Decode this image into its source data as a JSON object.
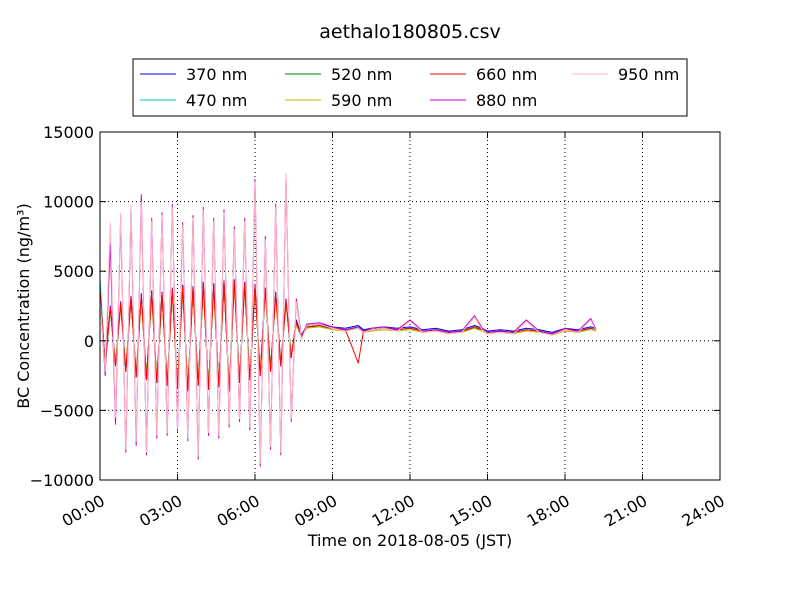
{
  "chart_data": {
    "type": "line",
    "title": "aethalo180805.csv",
    "xlabel": "Time on 2018-08-05 (JST)",
    "ylabel": "BC Concentration (ng/m³)",
    "xlim": [
      "00:00",
      "24:00"
    ],
    "ylim": [
      -10000,
      15000
    ],
    "x_ticks": [
      "00:00",
      "03:00",
      "06:00",
      "09:00",
      "12:00",
      "15:00",
      "18:00",
      "21:00",
      "24:00"
    ],
    "y_ticks": [
      "15000",
      "10000",
      "5000",
      "0",
      "−5000",
      "−10000"
    ],
    "grid": true,
    "legend_placement": "top",
    "x_hours": [
      0.0,
      0.2,
      0.4,
      0.6,
      0.8,
      1.0,
      1.2,
      1.4,
      1.6,
      1.8,
      2.0,
      2.2,
      2.4,
      2.6,
      2.8,
      3.0,
      3.2,
      3.4,
      3.6,
      3.8,
      4.0,
      4.2,
      4.4,
      4.6,
      4.8,
      5.0,
      5.2,
      5.4,
      5.6,
      5.8,
      6.0,
      6.2,
      6.4,
      6.6,
      6.8,
      7.0,
      7.2,
      7.4,
      7.6,
      7.8,
      8.0,
      8.5,
      9.0,
      9.5,
      10.0,
      10.2,
      10.5,
      11.0,
      11.5,
      12.0,
      12.5,
      13.0,
      13.5,
      14.0,
      14.5,
      14.8,
      15.0,
      15.5,
      16.0,
      16.5,
      17.0,
      17.5,
      18.0,
      18.5,
      19.0,
      19.2
    ],
    "series": [
      {
        "name": "370 nm",
        "color": "#0000ff",
        "values": [
          3000,
          -1500,
          2500,
          -1800,
          2800,
          -2200,
          3200,
          -2600,
          3400,
          -2800,
          3600,
          -3000,
          3500,
          -3200,
          3800,
          -3400,
          4000,
          -3600,
          3900,
          -3200,
          4200,
          -3500,
          4100,
          -3300,
          4300,
          -3600,
          4400,
          -3000,
          4200,
          -2800,
          4000,
          -2500,
          3800,
          -2200,
          3500,
          -1800,
          3000,
          -1200,
          1500,
          400,
          1100,
          1200,
          1000,
          900,
          1100,
          800,
          900,
          1000,
          900,
          1000,
          800,
          900,
          700,
          800,
          1100,
          900,
          700,
          800,
          700,
          900,
          800,
          600,
          900,
          800,
          1000,
          900
        ]
      },
      {
        "name": "470 nm",
        "color": "#00bfbf",
        "values": [
          4500,
          -2000,
          2300,
          -1700,
          2600,
          -2100,
          3000,
          -2500,
          3200,
          -2700,
          3400,
          -2900,
          3300,
          -3100,
          3600,
          -3300,
          3800,
          -3500,
          3700,
          -3100,
          4000,
          -3400,
          3900,
          -3200,
          4100,
          -3500,
          4200,
          -2900,
          4000,
          -2700,
          3800,
          -2400,
          3600,
          -2100,
          3300,
          -1700,
          2800,
          -1100,
          1300,
          300,
          1000,
          1100,
          900,
          800,
          1000,
          700,
          800,
          900,
          800,
          900,
          700,
          800,
          600,
          700,
          1000,
          800,
          600,
          700,
          600,
          800,
          700,
          500,
          800,
          700,
          900,
          800
        ]
      },
      {
        "name": "520 nm",
        "color": "#008000",
        "values": [
          3800,
          -1800,
          2200,
          -1600,
          2500,
          -2000,
          2900,
          -2400,
          3100,
          -2600,
          3300,
          -2800,
          3200,
          -3000,
          3500,
          -3200,
          3700,
          -3400,
          3600,
          -3000,
          3900,
          -3300,
          3800,
          -3100,
          4000,
          -3400,
          4100,
          -2800,
          3900,
          -2600,
          3700,
          -2300,
          3500,
          -2000,
          3200,
          -1600,
          2700,
          -1000,
          1200,
          300,
          1000,
          1000,
          900,
          800,
          900,
          700,
          800,
          900,
          800,
          900,
          700,
          800,
          600,
          700,
          900,
          800,
          600,
          700,
          600,
          800,
          700,
          500,
          800,
          700,
          900,
          800
        ]
      },
      {
        "name": "590 nm",
        "color": "#bfbf00",
        "values": [
          3500,
          -1700,
          2100,
          -1500,
          2400,
          -1900,
          2800,
          -2300,
          3000,
          -2500,
          3200,
          -2700,
          3100,
          -2900,
          3400,
          -3100,
          3600,
          -3300,
          3500,
          -2900,
          3800,
          -3200,
          3700,
          -3000,
          3900,
          -3300,
          4000,
          -2700,
          3800,
          -2500,
          3600,
          -2200,
          3400,
          -1900,
          3100,
          -1500,
          2600,
          -900,
          1100,
          300,
          900,
          1000,
          800,
          700,
          900,
          600,
          700,
          800,
          700,
          800,
          600,
          700,
          500,
          600,
          900,
          700,
          500,
          600,
          500,
          700,
          600,
          400,
          700,
          600,
          800,
          700
        ]
      },
      {
        "name": "660 nm",
        "color": "#ff0000",
        "values": [
          3600,
          -1700,
          2400,
          -1800,
          2700,
          -2200,
          3100,
          -2600,
          3300,
          -2800,
          3500,
          -3000,
          3400,
          -3200,
          3700,
          -3400,
          3900,
          -3600,
          3800,
          -3200,
          4100,
          -3500,
          4000,
          -3300,
          4200,
          -3600,
          4300,
          -3000,
          4100,
          -2800,
          3900,
          -2500,
          3700,
          -2200,
          3400,
          -1800,
          2900,
          -1200,
          1400,
          300,
          1000,
          1100,
          900,
          800,
          -1600,
          700,
          800,
          900,
          800,
          900,
          700,
          800,
          600,
          700,
          1000,
          800,
          600,
          700,
          600,
          800,
          700,
          500,
          800,
          700,
          900,
          800
        ]
      },
      {
        "name": "880 nm",
        "color": "#bf00bf",
        "values": [
          3200,
          -2500,
          7000,
          -6000,
          9000,
          -8000,
          9500,
          -7500,
          10500,
          -8200,
          8800,
          -7000,
          9200,
          -6800,
          9800,
          -6500,
          8500,
          -7200,
          9000,
          -8500,
          9600,
          -6800,
          8800,
          -7000,
          9400,
          -6200,
          8200,
          -5800,
          8800,
          -6400,
          11600,
          -9000,
          7500,
          -7800,
          9800,
          -8200,
          11800,
          -5800,
          3000,
          200,
          1200,
          1300,
          1000,
          800,
          1000,
          700,
          900,
          1000,
          800,
          1500,
          700,
          800,
          600,
          700,
          1800,
          900,
          600,
          700,
          600,
          1500,
          700,
          500,
          900,
          700,
          1600,
          800
        ]
      },
      {
        "name": "950 nm",
        "color": "#ffb6c1",
        "values": [
          3000,
          -2200,
          8500,
          -5500,
          9200,
          -7800,
          9800,
          -7200,
          10000,
          -8000,
          8600,
          -6800,
          9000,
          -6600,
          9600,
          -6300,
          8300,
          -7000,
          8800,
          -8300,
          9400,
          -6600,
          8600,
          -6800,
          9200,
          -6000,
          8000,
          -5600,
          8600,
          -6200,
          11400,
          -8800,
          7300,
          -7600,
          9600,
          -8000,
          12000,
          -5600,
          2800,
          100,
          1100,
          1200,
          900,
          700,
          900,
          600,
          800,
          900,
          700,
          1400,
          600,
          700,
          500,
          600,
          1700,
          800,
          500,
          600,
          500,
          1400,
          600,
          400,
          800,
          600,
          1500,
          700
        ]
      }
    ]
  }
}
